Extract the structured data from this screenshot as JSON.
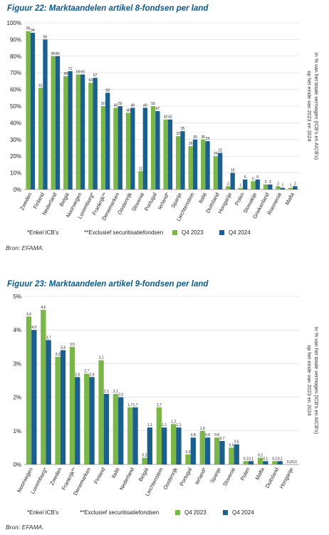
{
  "figures": [
    {
      "title": "Figuur 22: Marktaandelen artikel 8-fondsen per land",
      "source": "Bron: EFAMA.",
      "legend": {
        "note1": "*Enkel ICB's",
        "note2": "**Exclusief securitisatiefondsen",
        "series1": "Q4 2023",
        "series2": "Q4 2024"
      }
    },
    {
      "title": "Figuur 23: Marktaandelen artikel 9-fondsen per land",
      "source": "Bron: EFAMA.",
      "legend": {
        "note1": "*Enkel ICB's",
        "note2": "**Exclusief securitisatiefondsen",
        "series1": "Q4 2023",
        "series2": "Q4 2024"
      }
    }
  ],
  "colors": {
    "q4_2023": "#7ab648",
    "q4_2024": "#1a5f8e",
    "title": "#0a5a8a",
    "grid": "#cfcfcf"
  },
  "chart_data": [
    {
      "type": "bar",
      "title": "Figuur 22: Marktaandelen artikel 8-fondsen per land",
      "ylabel": "In % van het totale vermogen (ICB's en AICB's) op het einde van 2023 en 2024",
      "ylim": [
        0,
        100
      ],
      "yticks": [
        "0%",
        "10%",
        "20%",
        "30%",
        "40%",
        "50%",
        "60%",
        "70%",
        "80%",
        "90%",
        "100%"
      ],
      "categories": [
        "Zweden",
        "Finland",
        "Nederland",
        "België",
        "Noorwegen",
        "Luxemburg*",
        "Frankrijk**",
        "Denemarken",
        "Oostenrijk",
        "Slovenië",
        "Portugal",
        "Ierland*",
        "Spanje",
        "Liechtenstein",
        "Italië",
        "Duitsland",
        "Hongarije",
        "Polen",
        "Slowakije",
        "Griekenland",
        "Roemenië",
        "Malta"
      ],
      "series": [
        {
          "name": "Q4 2023",
          "values": [
            95,
            61,
            80,
            68,
            69,
            64,
            50,
            49,
            46,
            11,
            50,
            42,
            32,
            26,
            30,
            20,
            2,
            1,
            5,
            3,
            2,
            1
          ],
          "labels": [
            "95",
            "61",
            "80",
            "68",
            "69",
            "64",
            "50",
            "49",
            "46",
            "11",
            "50",
            "42",
            "32",
            "26",
            "30",
            "20",
            "2",
            "1",
            "5",
            "3",
            "2",
            "1"
          ]
        },
        {
          "name": "Q4 2024",
          "values": [
            94,
            90,
            80,
            71,
            69,
            67,
            58,
            50,
            49,
            49,
            47,
            42,
            35,
            30,
            29,
            22,
            10,
            6,
            6,
            3,
            1,
            2
          ],
          "labels": [
            "94",
            "90",
            "80",
            "71",
            "69",
            "67",
            "58",
            "50",
            "49",
            "49",
            "47",
            "42",
            "35",
            "30",
            "29",
            "22",
            "10",
            "6",
            "6",
            "3",
            "1",
            "2"
          ]
        }
      ]
    },
    {
      "type": "bar",
      "title": "Figuur 23: Marktaandelen artikel 9-fondsen per land",
      "ylabel": "In % van het totale vermogen (ICB's en AICB's) op het einde van 2023 en 2024",
      "ylim": [
        0,
        5
      ],
      "yticks": [
        "0%",
        "1%",
        "2%",
        "3%",
        "4%",
        "5%"
      ],
      "categories": [
        "Noorwegen",
        "Luxemburg*",
        "Zweden",
        "Frankrijk**",
        "Denemarken",
        "Finland",
        "Italië",
        "Nederland",
        "België",
        "Liechtenstein",
        "Oostenrijk",
        "Portugal",
        "Ierland*",
        "Spanje",
        "Slovenië",
        "Polen",
        "Malta",
        "Duitsland",
        "Hongarije"
      ],
      "series": [
        {
          "name": "Q4 2023",
          "values": [
            4.4,
            4.6,
            3.2,
            3.5,
            2.7,
            3.1,
            2.1,
            1.7,
            0.2,
            1.7,
            1.2,
            0.3,
            1.0,
            0.8,
            0.5,
            0.1,
            0.2,
            0.1,
            0.0
          ],
          "labels": [
            "4,4",
            "4,6",
            "3,2",
            "3,5",
            "2,7",
            "3,1",
            "2,1",
            "1,7",
            "0,2",
            "1,7",
            "1,2",
            "0,3",
            "1,0",
            "0,8",
            "0,5",
            "0,1",
            "0,2",
            "0,1",
            "0,0"
          ]
        },
        {
          "name": "Q4 2024",
          "values": [
            4.0,
            3.7,
            3.4,
            2.6,
            2.6,
            2.1,
            2.0,
            1.7,
            1.1,
            1.1,
            1.1,
            0.8,
            0.8,
            0.7,
            0.6,
            0.1,
            0.1,
            0.1,
            0.0
          ],
          "labels": [
            "4,0",
            "3,7",
            "3,4",
            "2,6",
            "2,6",
            "2,1",
            "2,0",
            "1,7",
            "1,1",
            "1,1",
            "1,1",
            "0,8",
            "0,8",
            "0,7",
            "0,6",
            "0,1",
            "0,1",
            "0,1",
            "0,0"
          ]
        }
      ]
    }
  ]
}
